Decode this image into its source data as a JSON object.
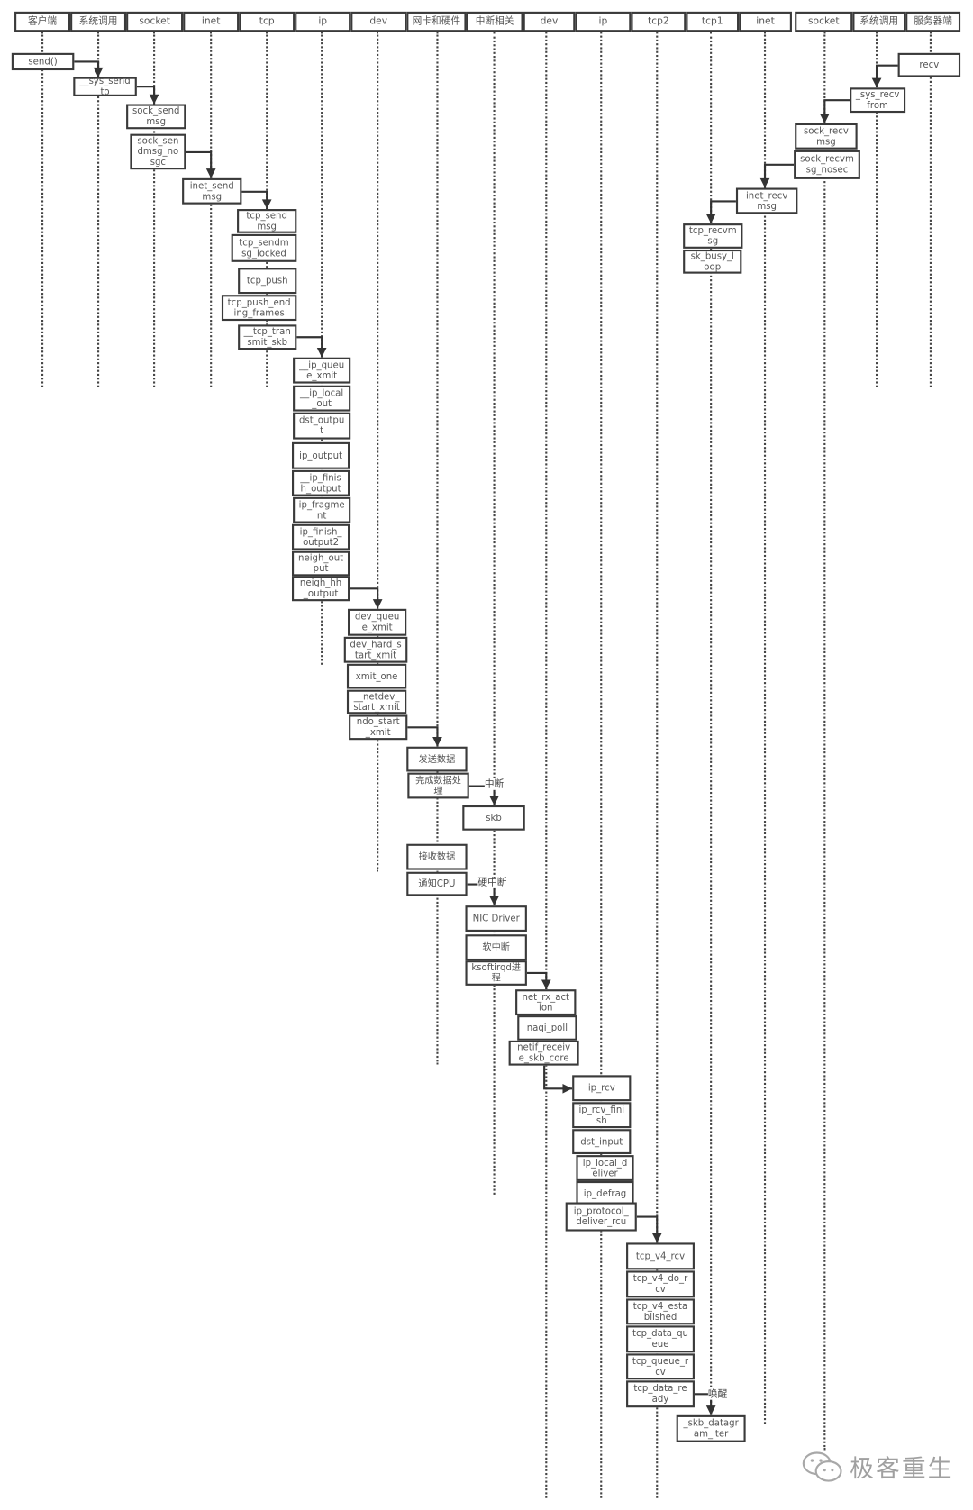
{
  "lanes": [
    "客户端",
    "系统调用",
    "socket",
    "inet",
    "tcp",
    "ip",
    "dev",
    "网卡和硬件",
    "中断相关",
    "dev",
    "ip",
    "tcp2",
    "tcp1",
    "inet",
    "socket",
    "系统调用",
    "服务器端"
  ],
  "boxes": [
    "send()",
    "__sys_sendto",
    "sock_sendmsg",
    "sock_sendmsg_nosgc",
    "inet_sendmsg",
    "tcp_sendmsg",
    "tcp_sendmsg_locked",
    "tcp_push",
    "tcp_push_ending_frames",
    "__tcp_transmit_skb",
    "__ip_queue_xmit",
    "__ip_local_out",
    "dst_output",
    "ip_output",
    "__ip_finish_output",
    "ip_fragment",
    "ip_finish_output2",
    "neigh_output",
    "neigh_hh_output",
    "dev_queue_xmit",
    "dev_hard_start_xmit",
    "xmit_one",
    "__netdev_start_xmit",
    "ndo_start_xmit",
    "发送数据",
    "完成数据处理",
    "skb",
    "接收数据",
    "通知CPU",
    "NIC Driver",
    "软中断",
    "ksoftirqd进程",
    "net_rx_action",
    "naqi_poll",
    "netif_receive_skb_core",
    "ip_rcv",
    "ip_rcv_finish",
    "dst_input",
    "ip_local_deliver",
    "ip_defrag",
    "ip_protocol_deliver_rcu",
    "tcp_v4_rcv",
    "tcp_v4_do_rcv",
    "tcp_v4_established",
    "tcp_data_queue",
    "tcp_queue_rcv",
    "tcp_data_ready",
    "_skb_datagram_iter",
    "recv",
    "_sys_recvfrom",
    "sock_recvmsg",
    "sock_recvmsg_nosec",
    "inet_recvmsg",
    "tcp_recvmsg",
    "sk_busy_loop"
  ],
  "edge_labels": {
    "interrupt": "中断",
    "hard_interrupt": "硬中断",
    "wakeup": "唤醒"
  },
  "watermark": "极客重生",
  "colors": {
    "line": "#3a3a3a",
    "text": "#555555"
  }
}
